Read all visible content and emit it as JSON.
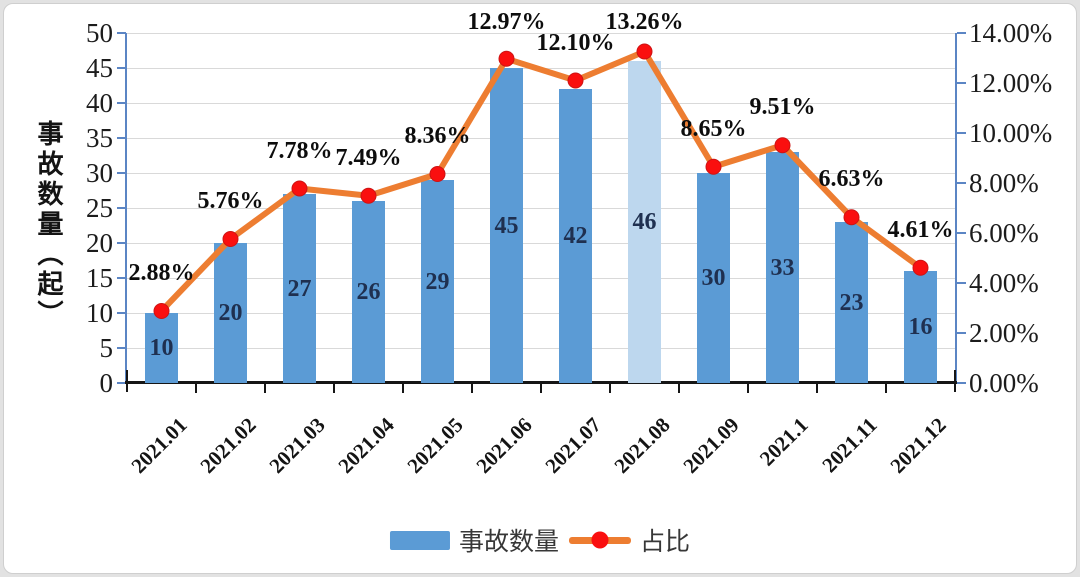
{
  "chart_data": {
    "type": "combo",
    "categories": [
      "2021.01",
      "2021.02",
      "2021.03",
      "2021.04",
      "2021.05",
      "2021.06",
      "2021.07",
      "2021.08",
      "2021.09",
      "2021.1",
      "2021.11",
      "2021.12"
    ],
    "series": [
      {
        "name": "事故数量",
        "chart": "bar",
        "axis": "left",
        "values": [
          10,
          20,
          27,
          26,
          29,
          45,
          42,
          46,
          30,
          33,
          23,
          16
        ],
        "value_labels": [
          "10",
          "20",
          "27",
          "26",
          "29",
          "45",
          "42",
          "46",
          "30",
          "33",
          "23",
          "16"
        ],
        "color": "#5b9bd5",
        "highlight_index": 7,
        "highlight_color": "#bdd7ee"
      },
      {
        "name": "占比",
        "chart": "line",
        "axis": "right",
        "values": [
          2.88,
          5.76,
          7.78,
          7.49,
          8.36,
          12.97,
          12.1,
          13.26,
          8.65,
          9.51,
          6.63,
          4.61
        ],
        "point_labels": [
          "2.88%",
          "5.76%",
          "7.78%",
          "7.49%",
          "8.36%",
          "12.97%",
          "12.10%",
          "13.26%",
          "8.65%",
          "9.51%",
          "6.63%",
          "4.61%"
        ],
        "line_color": "#ed7d31",
        "marker_color": "#fa0f0f",
        "marker_edge_color": "#cc1414"
      }
    ],
    "left_axis": {
      "title": "事故数量（起）",
      "min": 0,
      "max": 50,
      "step": 5,
      "tick_labels": [
        "50",
        "45",
        "40",
        "35",
        "30",
        "25",
        "20",
        "15",
        "10",
        "5",
        "0"
      ],
      "line_color": "#5b85c4"
    },
    "right_axis": {
      "min": 0,
      "max": 14,
      "step": 2,
      "tick_labels": [
        "14.00%",
        "12.00%",
        "10.00%",
        "8.00%",
        "6.00%",
        "4.00%",
        "2.00%",
        "0.00%"
      ],
      "line_color": "#5b85c4"
    },
    "grid": {
      "on": true,
      "color": "#d9d9d9"
    },
    "legend": {
      "position": "bottom",
      "items": [
        {
          "label": "事故数量",
          "swatch": "bar"
        },
        {
          "label": "占比",
          "swatch": "line-marker"
        }
      ]
    }
  }
}
